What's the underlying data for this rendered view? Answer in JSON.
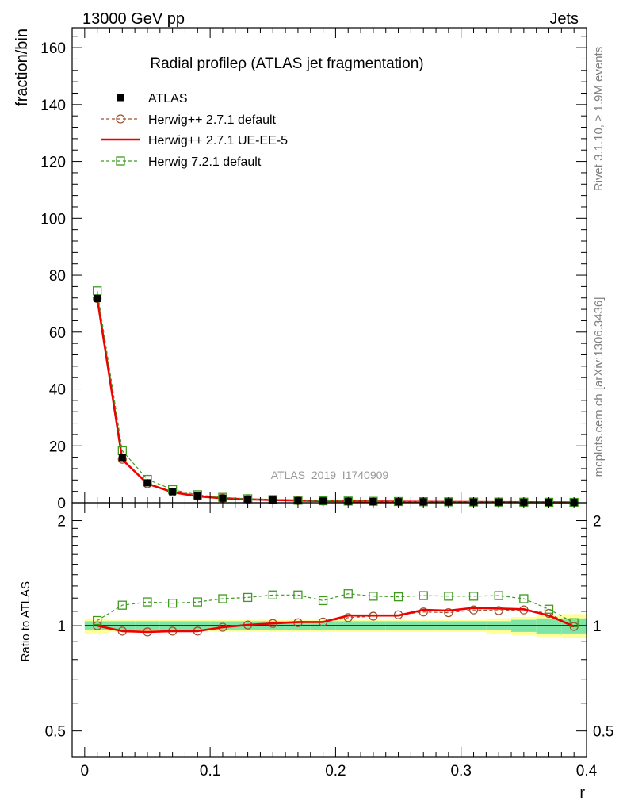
{
  "header": {
    "energy_label": "13000 GeV pp",
    "process_label": "Jets"
  },
  "side_labels": {
    "rivet": "Rivet 3.1.10, ≥ 1.9M events",
    "mcplots": "mcplots.cern.ch [arXiv:1306.3436]"
  },
  "colors": {
    "data": "#000000",
    "herwig_default": "#a0522d",
    "herwig_ue": "#ee0000",
    "herwig_721": "#3f9a1f",
    "band_inner": "#7fe5a6",
    "band_outer": "#ffff99"
  },
  "chart_data": [
    {
      "type": "line",
      "title": "Radial profileρ (ATLAS jet fragmentation)",
      "xlabel": "",
      "ylabel": "fraction/bin",
      "xlim": [
        -0.01,
        0.4
      ],
      "ylim": [
        0,
        167
      ],
      "y_ticks": [
        0,
        20,
        40,
        60,
        80,
        100,
        120,
        140,
        160
      ],
      "watermark": "ATLAS_2019_I1740909",
      "legend_position": "top-left",
      "x": [
        0.01,
        0.03,
        0.05,
        0.07,
        0.09,
        0.11,
        0.13,
        0.15,
        0.17,
        0.19,
        0.21,
        0.23,
        0.25,
        0.27,
        0.29,
        0.31,
        0.33,
        0.35,
        0.37,
        0.39
      ],
      "series": [
        {
          "name": "ATLAS",
          "style": "data",
          "values": [
            71.8,
            15.9,
            7.0,
            3.9,
            2.4,
            1.6,
            1.2,
            0.95,
            0.75,
            0.6,
            0.5,
            0.42,
            0.36,
            0.31,
            0.27,
            0.23,
            0.2,
            0.17,
            0.15,
            0.13
          ]
        },
        {
          "name": "Herwig++ 2.7.1 default",
          "style": "circle",
          "values": [
            71.8,
            15.3,
            6.7,
            3.75,
            2.3,
            1.58,
            1.2,
            0.96,
            0.77,
            0.62,
            0.53,
            0.45,
            0.39,
            0.34,
            0.3,
            0.26,
            0.22,
            0.19,
            0.17,
            0.13
          ]
        },
        {
          "name": "Herwig++ 2.7.1 UE-EE-5",
          "style": "line",
          "values": [
            71.9,
            15.2,
            6.7,
            3.7,
            2.3,
            1.58,
            1.2,
            0.96,
            0.77,
            0.62,
            0.54,
            0.45,
            0.39,
            0.34,
            0.3,
            0.26,
            0.23,
            0.19,
            0.17,
            0.13
          ]
        },
        {
          "name": "Herwig 7.2.1 default",
          "style": "square",
          "values": [
            74.5,
            18.3,
            8.2,
            4.6,
            2.8,
            1.9,
            1.4,
            1.12,
            0.89,
            0.69,
            0.6,
            0.5,
            0.42,
            0.37,
            0.32,
            0.27,
            0.24,
            0.2,
            0.17,
            0.13
          ]
        }
      ]
    },
    {
      "type": "line",
      "title": "",
      "xlabel": "r",
      "ylabel": "Ratio to ATLAS",
      "log_y": true,
      "xlim": [
        -0.01,
        0.4
      ],
      "ylim": [
        0.42,
        2.25
      ],
      "x_ticks": [
        0,
        0.1,
        0.2,
        0.3,
        0.4
      ],
      "y_ticks": [
        0.5,
        1,
        2
      ],
      "x": [
        0.01,
        0.03,
        0.05,
        0.07,
        0.09,
        0.11,
        0.13,
        0.15,
        0.17,
        0.19,
        0.21,
        0.23,
        0.25,
        0.27,
        0.29,
        0.31,
        0.33,
        0.35,
        0.37,
        0.39
      ],
      "band_inner": [
        0.03,
        0.03,
        0.03,
        0.03,
        0.03,
        0.03,
        0.03,
        0.03,
        0.03,
        0.03,
        0.03,
        0.03,
        0.03,
        0.03,
        0.03,
        0.03,
        0.03,
        0.04,
        0.05,
        0.05
      ],
      "band_outer": [
        0.05,
        0.04,
        0.04,
        0.04,
        0.04,
        0.04,
        0.04,
        0.04,
        0.04,
        0.04,
        0.04,
        0.04,
        0.04,
        0.04,
        0.04,
        0.04,
        0.05,
        0.06,
        0.07,
        0.08
      ],
      "series": [
        {
          "name": "Herwig++ 2.7.1 default",
          "style": "circle",
          "values": [
            1.0,
            0.965,
            0.96,
            0.965,
            0.965,
            0.99,
            1.005,
            1.015,
            1.02,
            1.025,
            1.055,
            1.065,
            1.075,
            1.095,
            1.09,
            1.11,
            1.105,
            1.11,
            1.085,
            0.995
          ]
        },
        {
          "name": "Herwig++ 2.7.1 UE-EE-5",
          "style": "line",
          "values": [
            1.0,
            0.965,
            0.96,
            0.965,
            0.965,
            0.99,
            1.005,
            1.015,
            1.025,
            1.025,
            1.07,
            1.07,
            1.07,
            1.11,
            1.105,
            1.125,
            1.12,
            1.115,
            1.07,
            0.995
          ]
        },
        {
          "name": "Herwig 7.2.1 default",
          "style": "square",
          "values": [
            1.035,
            1.145,
            1.17,
            1.16,
            1.17,
            1.195,
            1.205,
            1.225,
            1.225,
            1.18,
            1.235,
            1.215,
            1.21,
            1.22,
            1.215,
            1.215,
            1.22,
            1.195,
            1.115,
            1.02
          ]
        }
      ]
    }
  ]
}
